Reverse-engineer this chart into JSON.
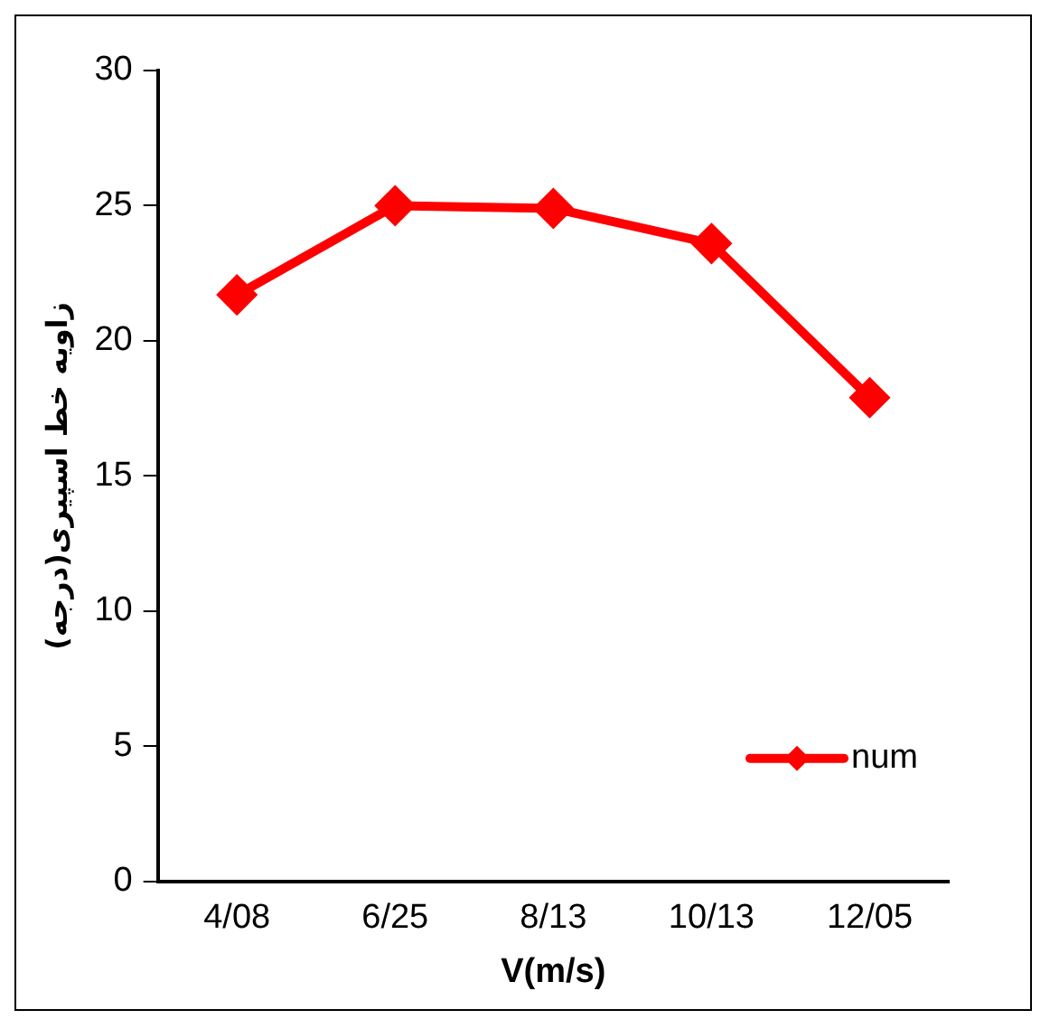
{
  "chart_data": {
    "type": "line",
    "xlabel": "V(m/s)",
    "ylabel": "زاویه خط اسپیری(درجه)",
    "categories": [
      "4/08",
      "6/25",
      "8/13",
      "10/13",
      "12/05"
    ],
    "series": [
      {
        "name": "num",
        "color": "#ff0000",
        "values": [
          21.7,
          25.0,
          24.9,
          23.6,
          17.9
        ]
      }
    ],
    "ylim": [
      0,
      30
    ],
    "yticks": [
      0,
      5,
      10,
      15,
      20,
      25,
      30
    ],
    "grid": false,
    "legend": "bottom right",
    "marker": "diamond",
    "line_style": "solid"
  }
}
